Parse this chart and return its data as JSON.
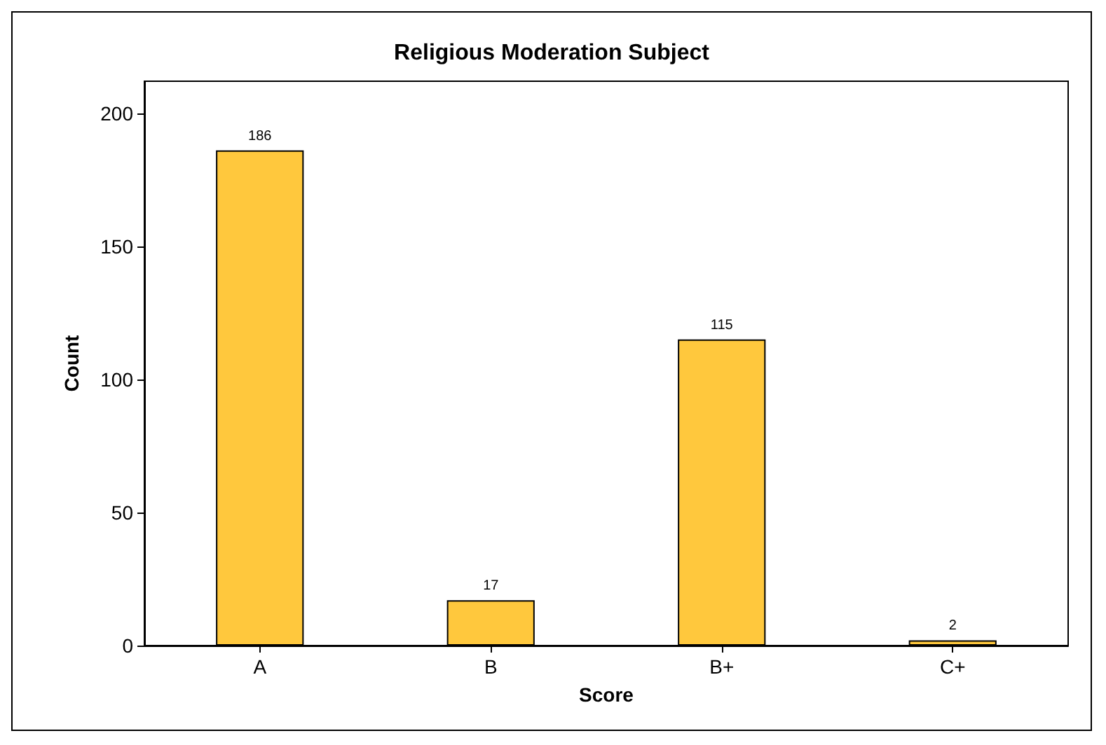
{
  "chart_data": {
    "type": "bar",
    "title": "Religious Moderation Subject",
    "xlabel": "Score",
    "ylabel": "Count",
    "categories": [
      "A",
      "B",
      "B+",
      "C+"
    ],
    "values": [
      186,
      17,
      115,
      2
    ],
    "color": "#ffc83d",
    "ylim": [
      0,
      212
    ],
    "yticks": [
      0,
      50,
      100,
      150,
      200
    ],
    "grid": false,
    "data_labels": true
  }
}
